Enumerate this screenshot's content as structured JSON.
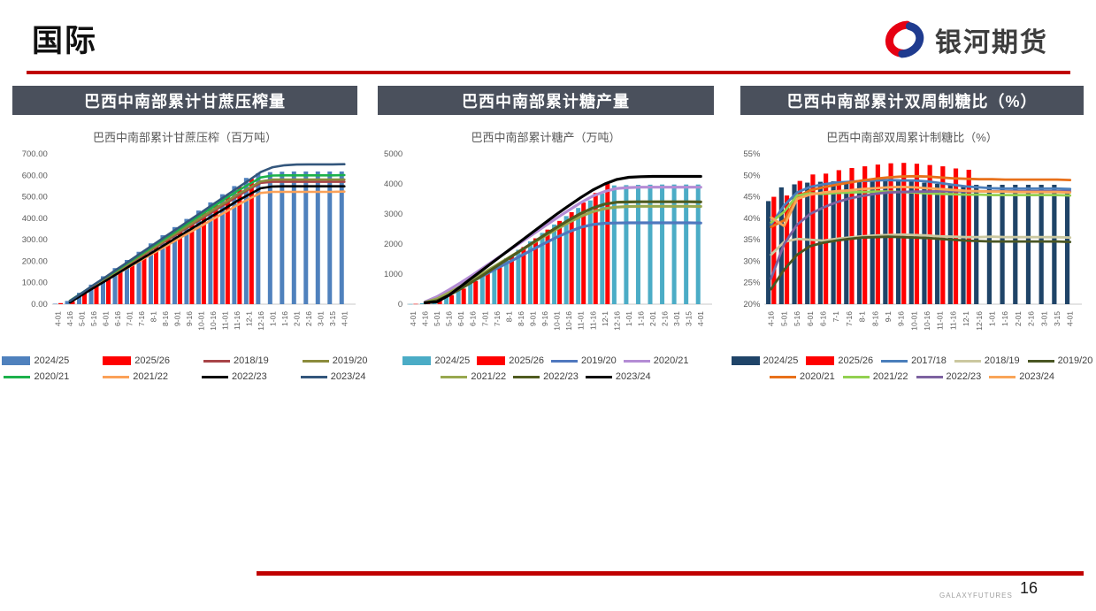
{
  "page": {
    "title": "国际",
    "footer_brand": "GALAXYFUTURES",
    "page_number": "16"
  },
  "logo": {
    "wordmark": "银河期货",
    "swirl_red": "#e60012",
    "swirl_blue": "#1f3b8f"
  },
  "colors": {
    "accent_red": "#c00000",
    "panel_header_bg": "#4a505c"
  },
  "chart_data": [
    {
      "type": "combo-bar-line",
      "panel_title": "巴西中南部累计甘蔗压榨量",
      "title": "巴西中南部累计甘蔗压榨（百万吨）",
      "y_axis": {
        "min": 0,
        "max": 700,
        "step": 100,
        "format": "2dp"
      },
      "line_width": 2.6,
      "categories": [
        "4-01",
        "4-16",
        "5-01",
        "5-16",
        "6-01",
        "6-16",
        "7-01",
        "7-16",
        "8-1",
        "8-16",
        "9-01",
        "9-16",
        "10-01",
        "10-16",
        "11-01",
        "11-16",
        "12-1",
        "12-16",
        "1-01",
        "1-16",
        "2-01",
        "2-16",
        "3-01",
        "3-15",
        "4-01"
      ],
      "bar_series": [
        {
          "name": "2024/25",
          "color": "#4F81BD",
          "values": [
            2,
            15,
            53,
            91,
            130,
            168,
            206,
            244,
            283,
            321,
            359,
            397,
            436,
            474,
            512,
            550,
            588,
            610,
            615,
            617,
            618,
            618,
            618,
            618,
            618
          ]
        },
        {
          "name": "2025/26",
          "color": "#FF0000",
          "values": [
            5,
            13,
            50,
            88,
            127,
            165,
            203,
            241,
            280,
            318,
            356,
            394,
            432,
            470,
            508,
            546,
            584,
            null,
            null,
            null,
            null,
            null,
            null,
            null,
            null
          ]
        }
      ],
      "line_series": [
        {
          "name": "2018/19",
          "color": "#A84448",
          "values": [
            null,
            15,
            50,
            84,
            119,
            154,
            189,
            223,
            258,
            293,
            327,
            362,
            397,
            431,
            466,
            501,
            535,
            565,
            570,
            570,
            570,
            570,
            570,
            570,
            570
          ]
        },
        {
          "name": "2019/20",
          "color": "#8B8B3C",
          "values": [
            null,
            15,
            50,
            86,
            121,
            156,
            192,
            227,
            262,
            298,
            333,
            368,
            404,
            439,
            474,
            510,
            540,
            572,
            580,
            580,
            580,
            580,
            580,
            580,
            580
          ]
        },
        {
          "name": "2020/21",
          "color": "#1CB14B",
          "values": [
            null,
            16,
            52,
            88,
            125,
            161,
            198,
            234,
            271,
            307,
            344,
            380,
            417,
            453,
            490,
            526,
            558,
            590,
            599,
            600,
            600,
            600,
            600,
            600,
            601
          ]
        },
        {
          "name": "2021/22",
          "color": "#FBA158",
          "values": [
            null,
            15,
            47,
            79,
            110,
            142,
            174,
            206,
            237,
            269,
            301,
            333,
            364,
            396,
            428,
            460,
            490,
            518,
            523,
            523,
            523,
            523,
            523,
            523,
            524
          ]
        },
        {
          "name": "2022/23",
          "color": "#000000",
          "values": [
            null,
            8,
            42,
            76,
            109,
            143,
            177,
            211,
            244,
            278,
            312,
            345,
            379,
            413,
            446,
            480,
            510,
            540,
            548,
            549,
            549,
            549,
            549,
            549,
            549
          ]
        },
        {
          "name": "2023/24",
          "color": "#33567C",
          "values": [
            null,
            15,
            52,
            90,
            127,
            165,
            202,
            240,
            277,
            315,
            352,
            390,
            427,
            465,
            502,
            540,
            577,
            615,
            638,
            647,
            650,
            651,
            651,
            651,
            652
          ]
        }
      ],
      "legend_rows": [
        [
          {
            "name": "2024/25",
            "color": "#4F81BD",
            "swatch": "bar"
          },
          {
            "name": "2025/26",
            "color": "#FF0000",
            "swatch": "bar"
          },
          {
            "name": "2018/19",
            "color": "#A84448",
            "swatch": "line"
          },
          {
            "name": "2019/20",
            "color": "#8B8B3C",
            "swatch": "line"
          }
        ],
        [
          {
            "name": "2020/21",
            "color": "#1CB14B",
            "swatch": "line"
          },
          {
            "name": "2021/22",
            "color": "#FBA158",
            "swatch": "line"
          },
          {
            "name": "2022/23",
            "color": "#000000",
            "swatch": "line"
          },
          {
            "name": "2023/24",
            "color": "#33567C",
            "swatch": "line"
          }
        ]
      ]
    },
    {
      "type": "combo-bar-line",
      "panel_title": "巴西中南部累计糖产量",
      "title": "巴西中南部累计糖产（万吨）",
      "y_axis": {
        "min": 0,
        "max": 5000,
        "step": 1000,
        "format": "int"
      },
      "line_width": 3.2,
      "categories": [
        "4-01",
        "4-16",
        "5-01",
        "5-16",
        "6-01",
        "6-16",
        "7-01",
        "7-16",
        "8-1",
        "8-16",
        "9-01",
        "9-16",
        "10-01",
        "10-16",
        "11-01",
        "11-16",
        "12-1",
        "12-16",
        "1-01",
        "1-16",
        "2-01",
        "2-16",
        "3-01",
        "3-15",
        "4-01"
      ],
      "bar_series": [
        {
          "name": "2024/25",
          "color": "#4BACC6",
          "values": [
            5,
            30,
            120,
            280,
            490,
            720,
            980,
            1250,
            1530,
            1810,
            2090,
            2370,
            2650,
            2930,
            3200,
            3450,
            3680,
            3950,
            3960,
            3970,
            3975,
            3980,
            3980,
            3980,
            3980
          ]
        },
        {
          "name": "2025/26",
          "color": "#FF0000",
          "values": [
            10,
            30,
            130,
            300,
            520,
            770,
            1040,
            1320,
            1610,
            1900,
            2190,
            2480,
            2770,
            3060,
            3380,
            3700,
            4000,
            null,
            null,
            null,
            null,
            null,
            null,
            null,
            null
          ]
        }
      ],
      "line_series": [
        {
          "name": "2019/20",
          "color": "#4F78BE",
          "values": [
            null,
            70,
            200,
            380,
            570,
            770,
            980,
            1190,
            1400,
            1610,
            1820,
            2030,
            2230,
            2410,
            2560,
            2650,
            2690,
            2700,
            2705,
            2705,
            2705,
            2705,
            2705,
            2705,
            2700
          ]
        },
        {
          "name": "2020/21",
          "color": "#B48CD5",
          "values": [
            null,
            80,
            250,
            480,
            720,
            980,
            1250,
            1520,
            1790,
            2060,
            2330,
            2600,
            2870,
            3130,
            3380,
            3600,
            3750,
            3850,
            3880,
            3890,
            3890,
            3890,
            3890,
            3890,
            3890
          ]
        },
        {
          "name": "2021/22",
          "color": "#98A84F",
          "values": [
            null,
            60,
            180,
            380,
            600,
            830,
            1070,
            1310,
            1550,
            1790,
            2030,
            2270,
            2500,
            2720,
            2920,
            3080,
            3180,
            3230,
            3250,
            3255,
            3255,
            3255,
            3255,
            3255,
            3250
          ]
        },
        {
          "name": "2022/23",
          "color": "#4F5B1F",
          "values": [
            null,
            40,
            120,
            300,
            520,
            760,
            1010,
            1270,
            1530,
            1790,
            2050,
            2310,
            2560,
            2800,
            3020,
            3200,
            3330,
            3390,
            3400,
            3405,
            3405,
            3405,
            3405,
            3405,
            3400
          ]
        },
        {
          "name": "2023/24",
          "color": "#000000",
          "values": [
            null,
            50,
            80,
            300,
            600,
            900,
            1200,
            1500,
            1800,
            2100,
            2400,
            2700,
            3000,
            3280,
            3550,
            3800,
            4000,
            4150,
            4220,
            4240,
            4250,
            4250,
            4250,
            4250,
            4250
          ]
        }
      ],
      "legend_rows": [
        [
          {
            "name": "2024/25",
            "color": "#4BACC6",
            "swatch": "bar"
          },
          {
            "name": "2025/26",
            "color": "#FF0000",
            "swatch": "bar"
          },
          {
            "name": "2019/20",
            "color": "#4F78BE",
            "swatch": "line"
          },
          {
            "name": "2020/21",
            "color": "#B48CD5",
            "swatch": "line"
          }
        ],
        [
          {
            "name": "2021/22",
            "color": "#98A84F",
            "swatch": "line"
          },
          {
            "name": "2022/23",
            "color": "#4F5B1F",
            "swatch": "line"
          },
          {
            "name": "2023/24",
            "color": "#000000",
            "swatch": "line"
          }
        ]
      ]
    },
    {
      "type": "combo-bar-line",
      "panel_title": "巴西中南部累计双周制糖比（%）",
      "title": "巴西中南部双周累计制糖比（%）",
      "y_axis": {
        "min": 20,
        "max": 55,
        "step": 5,
        "format": "pct"
      },
      "line_width": 2.8,
      "categories": [
        "4-16",
        "5-01",
        "5-16",
        "6-01",
        "6-16",
        "7-1",
        "7-16",
        "8-1",
        "8-16",
        "9-1",
        "9-16",
        "10-01",
        "10-16",
        "11-01",
        "11-16",
        "12-1",
        "12-16",
        "1-01",
        "1-16",
        "2-01",
        "2-16",
        "3-01",
        "3-15",
        "4-01"
      ],
      "bar_series": [
        {
          "name": "2024/25",
          "color": "#1F4468",
          "values": [
            44,
            47.2,
            47.9,
            48.3,
            48.5,
            48.6,
            48.5,
            48.4,
            48.6,
            48.8,
            48.8,
            48.6,
            48.3,
            48.0,
            47.8,
            47.7,
            47.8,
            47.8,
            47.8,
            47.8,
            47.8,
            47.8,
            47.8,
            46.8
          ]
        },
        {
          "name": "2025/26",
          "color": "#FF0000",
          "values": [
            45,
            45.3,
            48.7,
            50.2,
            50.4,
            51.2,
            51.7,
            52.1,
            52.5,
            52.8,
            52.9,
            52.7,
            52.4,
            52.1,
            51.6,
            51.3,
            null,
            null,
            null,
            null,
            null,
            null,
            null,
            null
          ]
        }
      ],
      "line_series": [
        {
          "name": "2017/18",
          "color": "#4A7EBB",
          "values": [
            38.5,
            43.0,
            46.0,
            47.3,
            47.9,
            48.3,
            48.5,
            48.7,
            48.8,
            48.9,
            48.8,
            48.8,
            48.6,
            48.2,
            47.8,
            47.4,
            47.2,
            47.0,
            46.9,
            46.9,
            46.9,
            46.9,
            46.9,
            46.8
          ]
        },
        {
          "name": "2018/19",
          "color": "#CBC8A0",
          "values": [
            31.5,
            34.5,
            35.2,
            35.0,
            34.8,
            35.2,
            35.5,
            35.8,
            36.0,
            36.1,
            36.2,
            36.1,
            36.0,
            35.8,
            35.7,
            35.6,
            35.6,
            35.7,
            35.6,
            35.6,
            35.6,
            35.6,
            35.6,
            35.5
          ]
        },
        {
          "name": "2019/20",
          "color": "#4A5623",
          "values": [
            23.5,
            28.0,
            31.5,
            33.5,
            34.3,
            34.8,
            35.2,
            35.5,
            35.6,
            35.7,
            35.6,
            35.5,
            35.4,
            35.2,
            35.0,
            34.8,
            34.7,
            34.6,
            34.6,
            34.6,
            34.6,
            34.6,
            34.6,
            34.5
          ]
        },
        {
          "name": "2020/21",
          "color": "#E8701A",
          "values": [
            38.0,
            39.5,
            45.0,
            46.5,
            47.2,
            47.8,
            48.3,
            48.8,
            49.2,
            49.5,
            49.7,
            49.8,
            49.7,
            49.5,
            49.3,
            49.2,
            49.1,
            49.1,
            49.0,
            49.0,
            49.0,
            49.0,
            49.0,
            48.9
          ]
        },
        {
          "name": "2021/22",
          "color": "#92D050",
          "values": [
            39.0,
            41.5,
            45.3,
            45.8,
            45.7,
            45.9,
            46.0,
            46.1,
            46.2,
            46.2,
            46.1,
            46.0,
            45.8,
            45.7,
            45.6,
            45.5,
            45.5,
            45.4,
            45.4,
            45.4,
            45.4,
            45.4,
            45.4,
            45.3
          ]
        },
        {
          "name": "2022/23",
          "color": "#7D62A0",
          "values": [
            26.0,
            34.0,
            38.5,
            41.0,
            42.5,
            43.7,
            44.6,
            45.2,
            45.7,
            46.0,
            46.1,
            46.2,
            46.2,
            46.3,
            46.3,
            46.3,
            46.3,
            46.3,
            46.3,
            46.3,
            46.3,
            46.3,
            46.3,
            46.3
          ]
        },
        {
          "name": "2023/24",
          "color": "#F9A558",
          "values": [
            40.2,
            38.2,
            44.5,
            45.5,
            46.0,
            46.3,
            46.5,
            46.8,
            47.0,
            47.2,
            47.3,
            47.2,
            47.0,
            46.8,
            46.6,
            46.4,
            46.3,
            46.2,
            46.2,
            46.1,
            46.1,
            46.1,
            46.1,
            46.0
          ]
        }
      ],
      "legend_rows": [
        [
          {
            "name": "2024/25",
            "color": "#1F4468",
            "swatch": "bar"
          },
          {
            "name": "2025/26",
            "color": "#FF0000",
            "swatch": "bar"
          },
          {
            "name": "2017/18",
            "color": "#4A7EBB",
            "swatch": "line"
          },
          {
            "name": "2018/19",
            "color": "#CBC8A0",
            "swatch": "line"
          },
          {
            "name": "2019/20",
            "color": "#4A5623",
            "swatch": "line"
          }
        ],
        [
          {
            "name": "2020/21",
            "color": "#E8701A",
            "swatch": "line"
          },
          {
            "name": "2021/22",
            "color": "#92D050",
            "swatch": "line"
          },
          {
            "name": "2022/23",
            "color": "#7D62A0",
            "swatch": "line"
          },
          {
            "name": "2023/24",
            "color": "#F9A558",
            "swatch": "line"
          }
        ]
      ]
    }
  ]
}
